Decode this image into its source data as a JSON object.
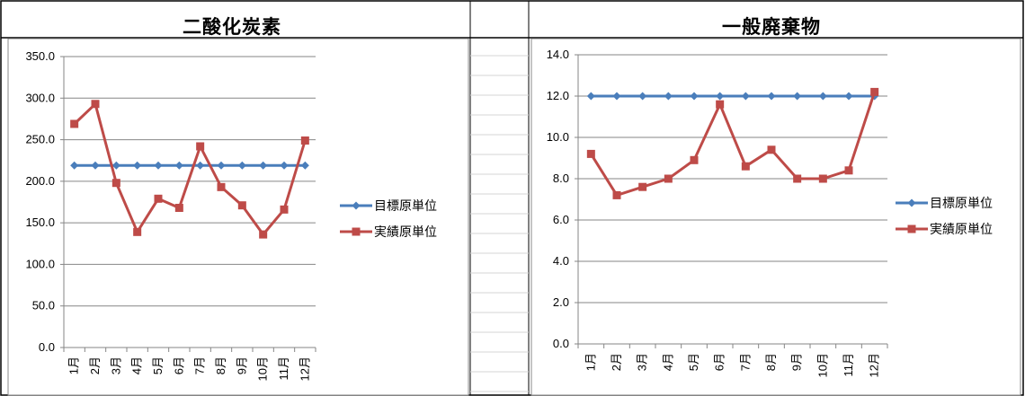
{
  "colors": {
    "target": "#4a7ebb",
    "actual": "#be4b48",
    "grid": "#868686"
  },
  "chart_data": [
    {
      "type": "line",
      "title": "二酸化炭素",
      "categories": [
        "1月",
        "2月",
        "3月",
        "4月",
        "5月",
        "6月",
        "7月",
        "8月",
        "9月",
        "10月",
        "11月",
        "12月"
      ],
      "ylim": [
        0,
        350
      ],
      "yticks": [
        "0.0",
        "50.0",
        "100.0",
        "150.0",
        "200.0",
        "250.0",
        "300.0",
        "350.0"
      ],
      "grid": true,
      "legend_position": "right",
      "series": [
        {
          "name": "目標原単位",
          "marker": "diamond",
          "values": [
            219,
            219,
            219,
            219,
            219,
            219,
            219,
            219,
            219,
            219,
            219,
            219
          ]
        },
        {
          "name": "実績原単位",
          "marker": "square",
          "values": [
            269,
            293,
            198,
            139,
            179,
            168,
            242,
            193,
            171,
            136,
            166,
            249
          ]
        }
      ]
    },
    {
      "type": "line",
      "title": "一般廃棄物",
      "categories": [
        "1月",
        "2月",
        "3月",
        "4月",
        "5月",
        "6月",
        "7月",
        "8月",
        "9月",
        "10月",
        "11月",
        "12月"
      ],
      "ylim": [
        0,
        14
      ],
      "yticks": [
        "0.0",
        "2.0",
        "4.0",
        "6.0",
        "8.0",
        "10.0",
        "12.0",
        "14.0"
      ],
      "grid": true,
      "legend_position": "right",
      "series": [
        {
          "name": "目標原単位",
          "marker": "diamond",
          "values": [
            12,
            12,
            12,
            12,
            12,
            12,
            12,
            12,
            12,
            12,
            12,
            12
          ]
        },
        {
          "name": "実績原単位",
          "marker": "square",
          "values": [
            9.2,
            7.2,
            7.6,
            8.0,
            8.9,
            11.6,
            8.6,
            9.4,
            8.0,
            8.0,
            8.4,
            12.2
          ]
        }
      ]
    }
  ]
}
